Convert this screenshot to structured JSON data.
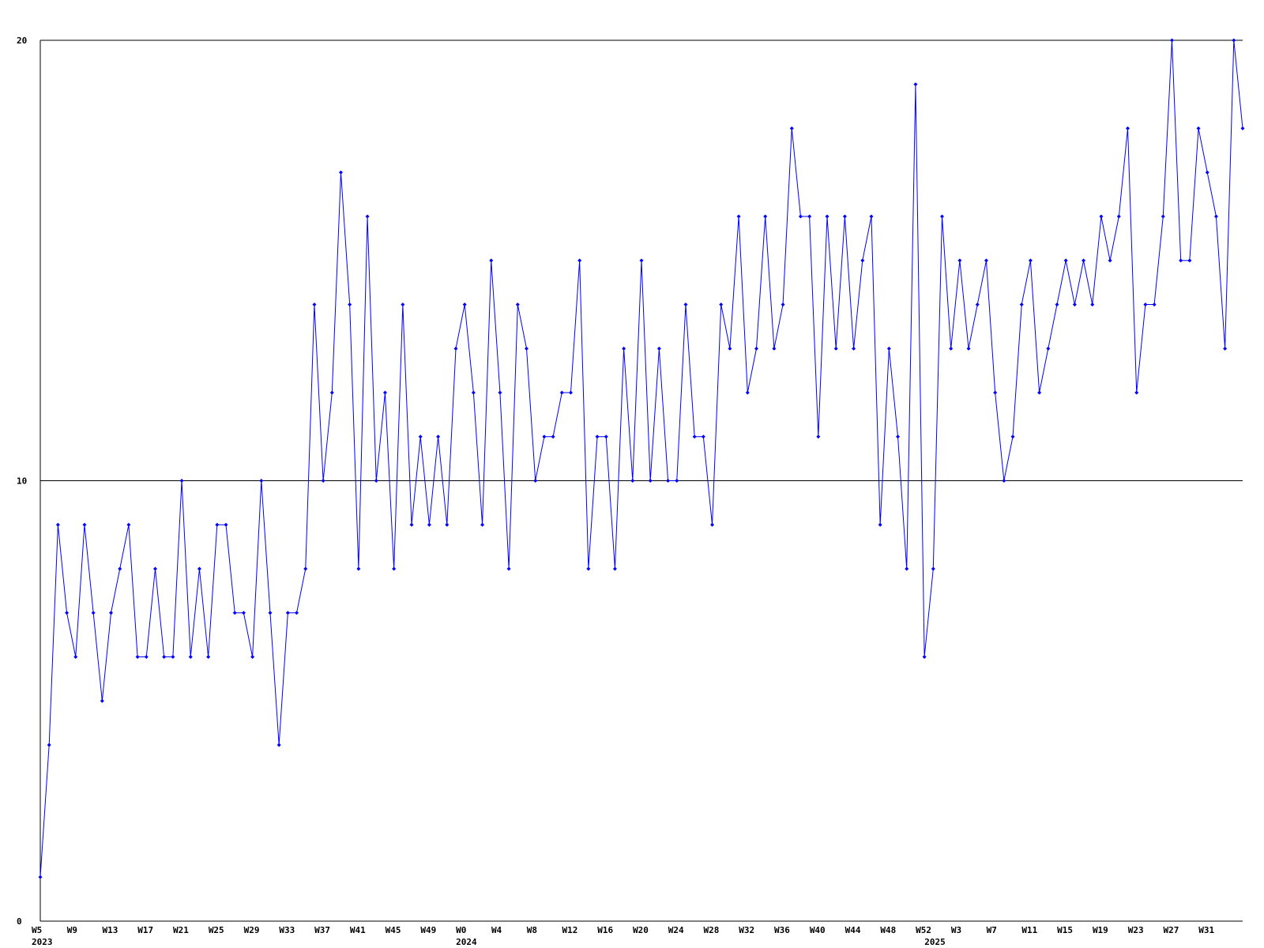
{
  "chart_data": {
    "type": "line",
    "categories": [
      "W5",
      null,
      null,
      null,
      "W9",
      null,
      null,
      null,
      "W13",
      null,
      null,
      null,
      "W17",
      null,
      null,
      null,
      "W21",
      null,
      null,
      null,
      "W25",
      null,
      null,
      null,
      "W29",
      null,
      null,
      null,
      "W33",
      null,
      null,
      null,
      "W37",
      null,
      null,
      null,
      "W41",
      null,
      null,
      null,
      "W45",
      null,
      null,
      null,
      "W49",
      null,
      null,
      null,
      "W0",
      null,
      null,
      null,
      "W4",
      null,
      null,
      null,
      "W8",
      null,
      null,
      null,
      "W12",
      null,
      null,
      null,
      "W16",
      null,
      null,
      null,
      "W20",
      null,
      null,
      null,
      "W24",
      null,
      null,
      null,
      "W28",
      null,
      null,
      null,
      "W32",
      null,
      null,
      null,
      "W36",
      null,
      null,
      null,
      "W40",
      null,
      null,
      null,
      "W44",
      null,
      null,
      null,
      "W48",
      null,
      null,
      null,
      "W52",
      null,
      null,
      null,
      "W3",
      null,
      null,
      null,
      "W7",
      null,
      null,
      null,
      "W11",
      null,
      null,
      null,
      "W15",
      null,
      null,
      null,
      "W19",
      null,
      null,
      null,
      "W23",
      null,
      null,
      null,
      "W27",
      null,
      null,
      null,
      "W31",
      null,
      null,
      null,
      null
    ],
    "category_years": [
      "2023",
      null,
      null,
      null,
      null,
      null,
      null,
      null,
      null,
      null,
      null,
      null,
      null,
      null,
      null,
      null,
      null,
      null,
      null,
      null,
      null,
      null,
      null,
      null,
      null,
      null,
      null,
      null,
      null,
      null,
      null,
      null,
      null,
      null,
      null,
      null,
      null,
      null,
      null,
      null,
      null,
      null,
      null,
      null,
      null,
      null,
      null,
      null,
      "2024",
      null,
      null,
      null,
      null,
      null,
      null,
      null,
      null,
      null,
      null,
      null,
      null,
      null,
      null,
      null,
      null,
      null,
      null,
      null,
      null,
      null,
      null,
      null,
      null,
      null,
      null,
      null,
      null,
      null,
      null,
      null,
      null,
      null,
      null,
      null,
      null,
      null,
      null,
      null,
      null,
      null,
      null,
      null,
      null,
      null,
      null,
      null,
      null,
      null,
      null,
      null,
      null,
      "2025",
      null,
      null,
      null,
      null,
      null,
      null,
      null,
      null,
      null,
      null,
      null,
      null,
      null,
      null,
      null,
      null,
      null,
      null,
      null,
      null,
      null,
      null,
      null,
      null,
      null,
      null,
      null,
      null,
      null,
      null,
      null,
      null,
      null,
      null,
      null,
      null
    ],
    "series": [
      {
        "color": "#0000ff",
        "values": [
          1,
          4,
          9,
          7,
          6,
          9,
          7,
          5,
          7,
          8,
          9,
          6,
          6,
          8,
          6,
          6,
          10,
          6,
          8,
          6,
          9,
          9,
          7,
          7,
          6,
          10,
          7,
          4,
          7,
          7,
          8,
          14,
          10,
          12,
          17,
          14,
          8,
          16,
          10,
          12,
          8,
          14,
          9,
          11,
          9,
          11,
          9,
          13,
          14,
          12,
          9,
          15,
          12,
          8,
          14,
          13,
          10,
          11,
          11,
          12,
          12,
          15,
          8,
          11,
          11,
          8,
          13,
          10,
          15,
          10,
          13,
          10,
          10,
          14,
          11,
          11,
          9,
          14,
          13,
          16,
          12,
          13,
          16,
          13,
          14,
          18,
          16,
          16,
          11,
          16,
          13,
          16,
          13,
          15,
          16,
          9,
          13,
          11,
          8,
          19,
          6,
          8,
          16,
          13,
          15,
          13,
          14,
          15,
          12,
          10,
          11,
          14,
          15,
          12,
          13,
          14,
          15,
          14,
          15,
          14,
          16,
          15,
          16,
          18,
          12,
          14,
          14,
          16,
          20,
          15,
          15,
          18,
          17,
          16,
          13,
          20,
          18
        ]
      }
    ],
    "ylim": [
      0,
      20
    ],
    "yticks": [
      0,
      10,
      20
    ],
    "grid": true
  }
}
